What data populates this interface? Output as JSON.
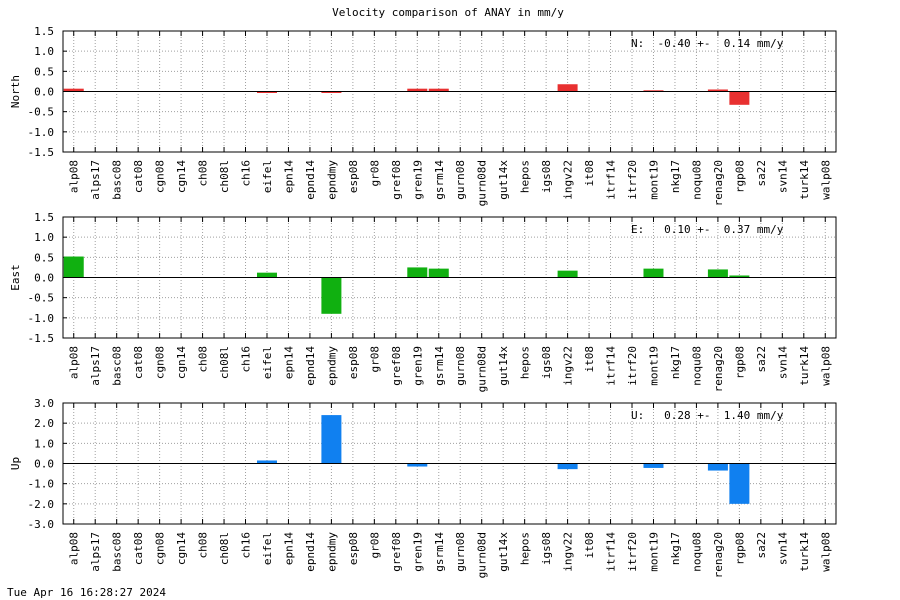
{
  "chart_data": {
    "type": "bar",
    "title": "Velocity comparison of ANAY in mm/y",
    "categories": [
      "alp08",
      "alps17",
      "basc08",
      "cat08",
      "cgn08",
      "cgn14",
      "ch08",
      "ch08l",
      "ch16",
      "eifel",
      "epn14",
      "epnd14",
      "epndmy",
      "esp08",
      "gr08",
      "gref08",
      "gren19",
      "gsrm14",
      "gurn08",
      "gurn08d",
      "gut14x",
      "hepos",
      "igs08",
      "ingv22",
      "it08",
      "itrf14",
      "itrf20",
      "mont19",
      "nkg17",
      "noqu08",
      "renag20",
      "rgp08",
      "sa22",
      "svn14",
      "turk14",
      "walp08"
    ],
    "grid": true,
    "panels": [
      {
        "ylabel": "North",
        "ylim": [
          -1.5,
          1.5
        ],
        "yticks": [
          "1.5",
          "1.0",
          "0.5",
          "0.0",
          "-0.5",
          "-1.0",
          "-1.5"
        ],
        "color": "#e83030",
        "stat": "N:  -0.40 +-  0.14 mm/y",
        "values": [
          0.07,
          0,
          0,
          0,
          0,
          0,
          0,
          0,
          0,
          -0.03,
          0,
          0,
          -0.03,
          0,
          0,
          0,
          0.07,
          0.07,
          0,
          0,
          0,
          0,
          0,
          0.18,
          0,
          0,
          0,
          0.03,
          0,
          0,
          0.05,
          -0.33,
          0,
          0,
          0,
          0
        ]
      },
      {
        "ylabel": "East",
        "ylim": [
          -1.5,
          1.5
        ],
        "yticks": [
          "1.5",
          "1.0",
          "0.5",
          "0.0",
          "-0.5",
          "-1.0",
          "-1.5"
        ],
        "color": "#10b010",
        "stat": "E:   0.10 +-  0.37 mm/y",
        "values": [
          0.52,
          0,
          0,
          0,
          0,
          0,
          0,
          0,
          0,
          0.12,
          0,
          0,
          -0.9,
          0,
          0,
          0,
          0.25,
          0.22,
          0,
          0,
          0,
          0,
          0,
          0.17,
          0,
          0,
          0,
          0.22,
          0,
          0,
          0.2,
          0.05,
          0,
          0,
          0,
          0
        ]
      },
      {
        "ylabel": "Up",
        "ylim": [
          -3.0,
          3.0
        ],
        "yticks": [
          "3.0",
          "2.0",
          "1.0",
          "0.0",
          "-1.0",
          "-2.0",
          "-3.0"
        ],
        "color": "#1080f0",
        "stat": "U:   0.28 +-  1.40 mm/y",
        "values": [
          0,
          0,
          0,
          0,
          0,
          0,
          0,
          0,
          0,
          0.15,
          0,
          0,
          2.4,
          0,
          0,
          0,
          -0.15,
          0,
          0,
          0,
          0,
          0,
          0,
          -0.28,
          0,
          0,
          0,
          -0.22,
          0,
          0,
          -0.35,
          -2.0,
          0,
          0,
          0,
          0
        ]
      }
    ]
  },
  "footer": {
    "timestamp": "Tue Apr 16 16:28:27 2024"
  }
}
